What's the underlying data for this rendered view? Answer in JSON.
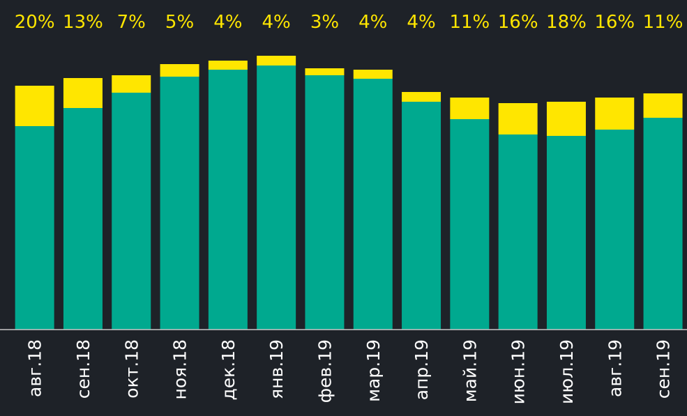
{
  "chart_data": {
    "type": "stacked_bar",
    "categories": [
      "авг.18",
      "сен.18",
      "окт.18",
      "ноя.18",
      "дек.18",
      "янв.19",
      "фев.19",
      "мар.19",
      "апр.19",
      "май.19",
      "июн.19",
      "июл.19",
      "авг.19",
      "сен.19"
    ],
    "series": [
      {
        "color": "#00a98f",
        "values": [
          292,
          318,
          340,
          363,
          373,
          379,
          365,
          360,
          327,
          302,
          280,
          278,
          287,
          304
        ]
      },
      {
        "color": "#ffe600",
        "values": [
          58,
          43,
          25,
          18,
          13,
          14,
          10,
          13,
          14,
          31,
          45,
          49,
          46,
          35
        ]
      }
    ],
    "shares": [
      20,
      13,
      7,
      5,
      4,
      4,
      3,
      4,
      4,
      11,
      16,
      18,
      16,
      11
    ],
    "share_labels": [
      "20%",
      "13%",
      "7%",
      "5%",
      "4%",
      "4%",
      "3%",
      "4%",
      "4%",
      "11%",
      "16%",
      "18%",
      "16%",
      "11%"
    ],
    "ylim": [
      0,
      473
    ]
  }
}
